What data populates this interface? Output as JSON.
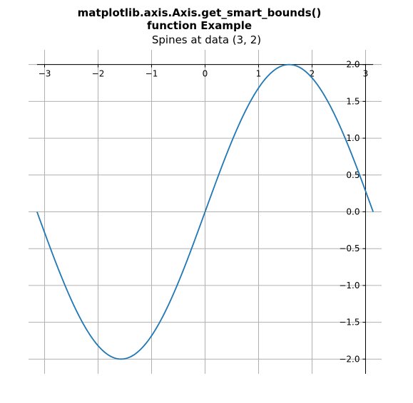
{
  "chart_data": {
    "type": "line",
    "title_line1": "matplotlib.axis.Axis.get_smart_bounds()",
    "title_line2": "function Example",
    "subtitle": "Spines at data (3, 2)",
    "xlim": [
      -3.3,
      3.3
    ],
    "ylim": [
      -2.2,
      2.2
    ],
    "x_ticks": [
      -3,
      -2,
      -1,
      0,
      1,
      2,
      3
    ],
    "x_tick_labels": [
      "−3",
      "−2",
      "−1",
      "0",
      "1",
      "2",
      "3"
    ],
    "y_ticks": [
      2.0,
      1.5,
      1.0,
      0.5,
      0.0,
      -0.5,
      -1.0,
      -1.5,
      -2.0
    ],
    "y_tick_labels": [
      "2.0",
      "1.5",
      "1.0",
      "0.5",
      "0.0",
      "−0.5",
      "−1.0",
      "−1.5",
      "−2.0"
    ],
    "spine_position": [
      3,
      2
    ],
    "grid": true,
    "series": [
      {
        "function": "2*sin(x)",
        "x_range": [
          -3.14159,
          3.14159
        ],
        "color": "#1f77b4"
      }
    ]
  }
}
